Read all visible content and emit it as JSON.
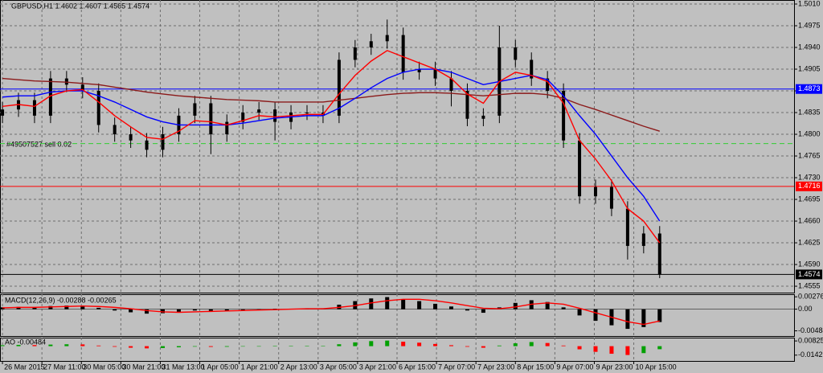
{
  "chart_data": [
    {
      "type": "candlestick",
      "title": "GBPUSD,H1 1.4602 1.4607 1.4565 1.4574",
      "annotation": "#49507527 sell 0.02",
      "candle_color": "#000000",
      "grid": true,
      "xlim": [
        0,
        322
      ],
      "ylim": [
        1.45447,
        1.50165
      ],
      "xticks": [
        {
          "value": 1,
          "label": "26 Mar 2015"
        },
        {
          "value": 17,
          "label": "27 Mar 11:00"
        },
        {
          "value": 33,
          "label": "30 Mar 05:00"
        },
        {
          "value": 49,
          "label": "30 Mar 21:00"
        },
        {
          "value": 65,
          "label": "31 Mar 13:00"
        },
        {
          "value": 81,
          "label": "1 Apr 05:00"
        },
        {
          "value": 97,
          "label": "1 Apr 21:00"
        },
        {
          "value": 113,
          "label": "2 Apr 13:00"
        },
        {
          "value": 129,
          "label": "3 Apr 05:00"
        },
        {
          "value": 145,
          "label": "3 Apr 21:00"
        },
        {
          "value": 161,
          "label": "6 Apr 15:00"
        },
        {
          "value": 177,
          "label": "7 Apr 07:00"
        },
        {
          "value": 193,
          "label": "7 Apr 23:00"
        },
        {
          "value": 209,
          "label": "8 Apr 15:00"
        },
        {
          "value": 225,
          "label": "9 Apr 07:00"
        },
        {
          "value": 241,
          "label": "9 Apr 23:00"
        },
        {
          "value": 257,
          "label": "10 Apr 15:00"
        }
      ],
      "yticks": [
        {
          "value": 1.501,
          "label": "1.5010"
        },
        1.4975,
        {
          "value": 1.494,
          "label": "1.4940"
        },
        1.4905,
        {
          "value": 1.487,
          "label": "1.4870"
        },
        1.4835,
        {
          "value": 1.48,
          "label": "1.4800"
        },
        1.4765,
        {
          "value": 1.473,
          "label": "1.4730"
        },
        1.4695,
        {
          "value": 1.466,
          "label": "1.4660"
        },
        1.4625,
        {
          "value": 1.459,
          "label": "1.4590"
        },
        1.4555
      ],
      "levels": [
        {
          "value": 1.4873,
          "color": "#0000ff",
          "show_label": true
        },
        {
          "value": 1.4716,
          "color": "#ff0000",
          "show_label": true
        },
        {
          "value": 1.4574,
          "color": "#000000",
          "show_label": true
        },
        {
          "value": 1.4785,
          "color": "#32cd32",
          "show_label": false
        }
      ],
      "x": [
        1,
        7.5,
        14,
        20.5,
        27,
        33.5,
        40,
        46.5,
        53,
        59.5,
        66,
        72.5,
        79,
        85.5,
        92,
        98.5,
        105,
        111.5,
        118,
        124.5,
        131,
        137.5,
        144,
        150.5,
        157,
        163.5,
        170,
        176.5,
        183,
        189.5,
        196,
        202.5,
        209,
        215.5,
        222,
        228.5,
        235,
        241.5,
        248,
        254.5,
        261,
        267.5
      ],
      "open": [
        1.483,
        1.484,
        1.4855,
        1.483,
        1.489,
        1.488,
        1.487,
        1.4815,
        1.48,
        1.479,
        1.4775,
        1.48,
        1.483,
        1.485,
        1.48,
        1.482,
        1.4835,
        1.484,
        1.482,
        1.4835,
        1.4835,
        1.483,
        1.492,
        1.494,
        1.495,
        1.496,
        1.49,
        1.4905,
        1.489,
        1.487,
        1.4825,
        1.483,
        1.494,
        1.492,
        1.489,
        1.487,
        1.479,
        1.47,
        1.4715,
        1.468,
        1.462,
        1.464
      ],
      "high": [
        1.4852,
        1.4867,
        1.4867,
        1.4902,
        1.4902,
        1.4892,
        1.4882,
        1.4827,
        1.4812,
        1.4802,
        1.4812,
        1.4842,
        1.4862,
        1.4862,
        1.4832,
        1.4847,
        1.4852,
        1.4852,
        1.4847,
        1.4847,
        1.4847,
        1.4932,
        1.4952,
        1.4962,
        1.4985,
        1.4972,
        1.4917,
        1.4917,
        1.4902,
        1.4882,
        1.4842,
        1.4975,
        1.4952,
        1.4932,
        1.4902,
        1.4882,
        1.4802,
        1.4727,
        1.4727,
        1.4692,
        1.4652,
        1.4652
      ],
      "low": [
        1.4818,
        1.4828,
        1.4818,
        1.4818,
        1.4868,
        1.4858,
        1.4803,
        1.4788,
        1.4778,
        1.4763,
        1.4763,
        1.4788,
        1.4818,
        1.4768,
        1.4788,
        1.4808,
        1.4823,
        1.479,
        1.4808,
        1.4823,
        1.4818,
        1.4818,
        1.4908,
        1.4928,
        1.4938,
        1.4888,
        1.4888,
        1.4878,
        1.4845,
        1.4813,
        1.4813,
        1.4818,
        1.4908,
        1.4878,
        1.4858,
        1.4778,
        1.4688,
        1.4688,
        1.4668,
        1.4598,
        1.4608,
        1.4568
      ],
      "close": [
        1.484,
        1.4855,
        1.483,
        1.489,
        1.488,
        1.487,
        1.4815,
        1.48,
        1.479,
        1.4775,
        1.48,
        1.483,
        1.485,
        1.48,
        1.482,
        1.4835,
        1.484,
        1.482,
        1.4835,
        1.4835,
        1.483,
        1.492,
        1.494,
        1.495,
        1.496,
        1.49,
        1.4905,
        1.489,
        1.487,
        1.4825,
        1.483,
        1.494,
        1.492,
        1.489,
        1.487,
        1.479,
        1.47,
        1.4715,
        1.468,
        1.462,
        1.464,
        1.4574
      ],
      "lines": [
        {
          "color": "#8b1a1a",
          "values": [
            1.489,
            1.4888,
            1.4886,
            1.4885,
            1.4884,
            1.4882,
            1.488,
            1.4876,
            1.4872,
            1.4868,
            1.4865,
            1.4862,
            1.486,
            1.4858,
            1.4856,
            1.4855,
            1.4854,
            1.4852,
            1.4852,
            1.4852,
            1.4852,
            1.4855,
            1.4858,
            1.4861,
            1.4864,
            1.4866,
            1.4867,
            1.4867,
            1.4866,
            1.4864,
            1.4862,
            1.4864,
            1.4866,
            1.4866,
            1.4864,
            1.4858,
            1.4848,
            1.484,
            1.4831,
            1.4822,
            1.4813,
            1.4805
          ]
        },
        {
          "color": "#0000ff",
          "values": [
            1.486,
            1.4862,
            1.4862,
            1.4868,
            1.487,
            1.487,
            1.4862,
            1.4852,
            1.484,
            1.4828,
            1.482,
            1.4815,
            1.4815,
            1.4815,
            1.4815,
            1.4818,
            1.4822,
            1.4826,
            1.4828,
            1.483,
            1.483,
            1.4842,
            1.4858,
            1.4875,
            1.489,
            1.49,
            1.4905,
            1.4905,
            1.49,
            1.489,
            1.488,
            1.4885,
            1.489,
            1.4895,
            1.4888,
            1.4862,
            1.483,
            1.48,
            1.4765,
            1.473,
            1.47,
            1.466
          ]
        },
        {
          "color": "#ff0000",
          "values": [
            1.4845,
            1.4848,
            1.4845,
            1.4862,
            1.487,
            1.4872,
            1.4852,
            1.483,
            1.4812,
            1.4795,
            1.4792,
            1.4805,
            1.4822,
            1.482,
            1.4815,
            1.4822,
            1.483,
            1.4828,
            1.483,
            1.4832,
            1.4832,
            1.4865,
            1.4895,
            1.4918,
            1.4935,
            1.4925,
            1.4915,
            1.4905,
            1.489,
            1.4865,
            1.485,
            1.4885,
            1.49,
            1.4895,
            1.4885,
            1.485,
            1.479,
            1.476,
            1.4725,
            1.468,
            1.466,
            1.4625
          ]
        }
      ]
    },
    {
      "type": "bar",
      "title": "MACD(12,26,9) -0.00288 -0.00265",
      "color": "#000000",
      "grid": true,
      "ylim": [
        -0.006,
        0.00334
      ],
      "yticks": [
        0.00276,
        {
          "value": 0,
          "label": "0.00"
        },
        -0.00484
      ],
      "values": [
        0.0004,
        0.0005,
        0.0004,
        0.0007,
        0.0008,
        0.0008,
        0.0003,
        -0.0003,
        -0.0007,
        -0.001,
        -0.0009,
        -0.0006,
        -0.0003,
        -0.0004,
        -0.0004,
        -0.0002,
        0.0,
        0.0001,
        0.0001,
        0.0002,
        0.0002,
        0.001,
        0.0018,
        0.0024,
        0.0027,
        0.0022,
        0.0018,
        0.0012,
        0.0006,
        -0.0003,
        -0.0008,
        0.0004,
        0.0014,
        0.002,
        0.0016,
        0.0004,
        -0.0014,
        -0.0026,
        -0.0036,
        -0.0044,
        -0.004,
        -0.00288
      ],
      "lines": [
        {
          "color": "#ff0000",
          "values": [
            0.0003,
            0.0004,
            0.0004,
            0.0005,
            0.0006,
            0.0007,
            0.0006,
            0.0004,
            0.0001,
            -0.0003,
            -0.0006,
            -0.0007,
            -0.0006,
            -0.0005,
            -0.0004,
            -0.0003,
            -0.0002,
            -0.0001,
            0.0,
            0.0001,
            0.0001,
            0.0004,
            0.0008,
            0.0014,
            0.0019,
            0.0022,
            0.0022,
            0.0019,
            0.0014,
            0.0008,
            0.0002,
            0.0001,
            0.0005,
            0.0011,
            0.0014,
            0.0011,
            0.0002,
            -0.0008,
            -0.0018,
            -0.0028,
            -0.0034,
            -0.00265
          ]
        }
      ]
    },
    {
      "type": "bar",
      "title": "AO -0.00484",
      "up_color": "#00a000",
      "down_color": "#ff0000",
      "grid": true,
      "ylim": [
        -0.0234,
        0.0135
      ],
      "yticks": [
        0.00825,
        -0.0142
      ],
      "values": [
        0.0015,
        0.002,
        0.0018,
        0.0025,
        0.003,
        0.0028,
        0.001,
        -0.001,
        -0.0025,
        -0.0035,
        -0.003,
        -0.0018,
        -0.0008,
        -0.0012,
        -0.001,
        -0.0004,
        0.0,
        0.0002,
        0.0003,
        0.0005,
        0.0005,
        0.003,
        0.006,
        0.008,
        0.0088,
        0.007,
        0.0055,
        0.0035,
        0.0015,
        -0.001,
        -0.0025,
        0.001,
        0.0045,
        0.0065,
        0.005,
        0.001,
        -0.005,
        -0.009,
        -0.012,
        -0.014,
        -0.011,
        -0.00484
      ]
    }
  ]
}
